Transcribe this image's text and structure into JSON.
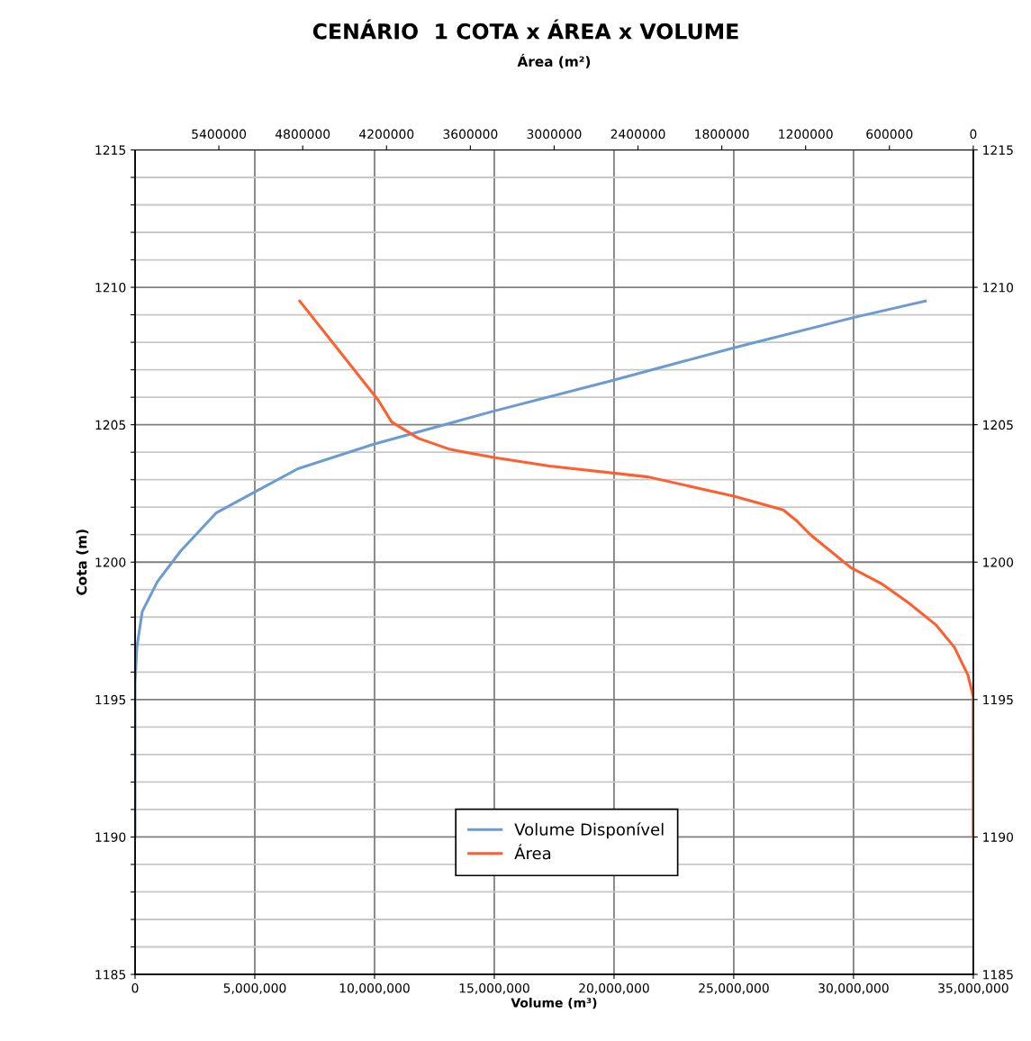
{
  "chart_data": {
    "type": "line",
    "title": "CENÁRIO  1 COTA x ÁREA x VOLUME",
    "xlabel": "Volume (m³)",
    "ylabel": "Cota (m)",
    "x2label": "Área (m²)",
    "series": [
      {
        "name": "Volume Disponível",
        "color": "#6b9bd1",
        "x": [
          0,
          0,
          75000,
          300000,
          940000,
          1900000,
          3400000,
          5100000,
          6800000,
          10000000,
          15000000,
          19900000,
          25000000,
          30000000,
          33000000
        ],
        "values": [
          1190,
          1195.6,
          1196.9,
          1198.2,
          1199.3,
          1200.4,
          1201.8,
          1202.6,
          1203.4,
          1204.3,
          1205.5,
          1206.6,
          1207.8,
          1208.9,
          1209.5
        ]
      },
      {
        "name": "Área",
        "color": "#ff5f2e",
        "axis": "x2",
        "x": [
          0,
          0,
          38700,
          135000,
          264000,
          458000,
          651000,
          876000,
          1166000,
          1263000,
          1360000,
          1714000,
          2327000,
          3035000,
          3422000,
          3744000,
          3970000,
          4163000,
          4260000,
          4821000
        ],
        "values": [
          1190,
          1195.1,
          1195.9,
          1196.9,
          1197.7,
          1198.5,
          1199.2,
          1199.8,
          1201.0,
          1201.5,
          1201.9,
          1202.4,
          1203.1,
          1203.5,
          1203.8,
          1204.1,
          1204.5,
          1205.1,
          1205.9,
          1209.5
        ]
      }
    ],
    "xlim": [
      0,
      35000000
    ],
    "xticks": [
      0,
      {
        "value": 5000000,
        "label": "5,000,000"
      },
      {
        "value": 10000000,
        "label": "10,000,000"
      },
      {
        "value": 15000000,
        "label": "15,000,000"
      },
      {
        "value": 20000000,
        "label": "20,000,000"
      },
      {
        "value": 25000000,
        "label": "25,000,000"
      },
      {
        "value": 30000000,
        "label": "30,000,000"
      },
      {
        "value": 35000000,
        "label": "35,000,000"
      }
    ],
    "x2lim": [
      6000000,
      0
    ],
    "x2ticks": [
      5400000,
      4800000,
      4200000,
      3600000,
      3000000,
      2400000,
      1800000,
      1200000,
      600000,
      0
    ],
    "ylim": [
      1185,
      1215
    ],
    "yticks": [
      1185,
      {
        "value": 1186,
        "label": null
      },
      {
        "value": 1187,
        "label": null
      },
      {
        "value": 1188,
        "label": null
      },
      {
        "value": 1189,
        "label": null
      },
      1190,
      {
        "value": 1191,
        "label": null
      },
      {
        "value": 1192,
        "label": null
      },
      {
        "value": 1193,
        "label": null
      },
      {
        "value": 1194,
        "label": null
      },
      1195,
      {
        "value": 1196,
        "label": null
      },
      {
        "value": 1197,
        "label": null
      },
      {
        "value": 1198,
        "label": null
      },
      {
        "value": 1199,
        "label": null
      },
      1200,
      {
        "value": 1201,
        "label": null
      },
      {
        "value": 1202,
        "label": null
      },
      {
        "value": 1203,
        "label": null
      },
      {
        "value": 1204,
        "label": null
      },
      1205,
      {
        "value": 1206,
        "label": null
      },
      {
        "value": 1207,
        "label": null
      },
      {
        "value": 1208,
        "label": null
      },
      {
        "value": 1209,
        "label": null
      },
      1210,
      {
        "value": 1211,
        "label": null
      },
      {
        "value": 1212,
        "label": null
      },
      {
        "value": 1213,
        "label": null
      },
      {
        "value": 1214,
        "label": null
      },
      1215
    ],
    "y2lim": [
      1185,
      1215
    ],
    "y2ticks": [
      1185,
      1190,
      1195,
      1200,
      1205,
      1210,
      1215
    ],
    "grid": true,
    "legend": "bottom",
    "marker": "none",
    "line_style": "solid"
  }
}
